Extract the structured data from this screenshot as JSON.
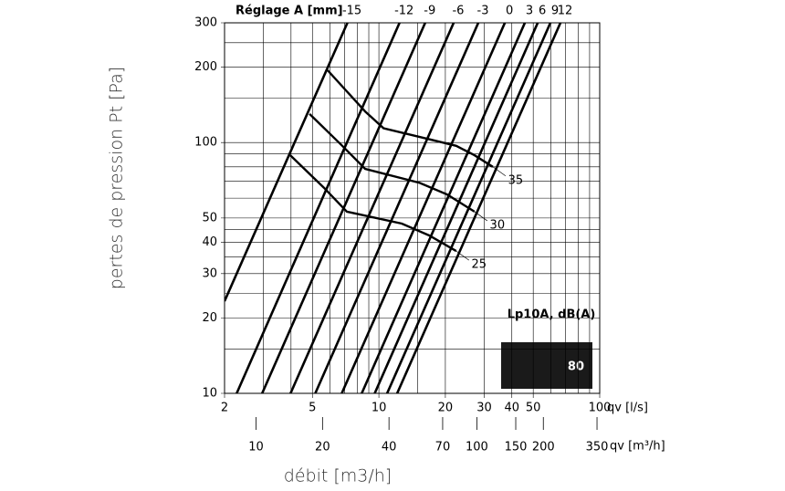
{
  "chart_data": {
    "type": "line",
    "xlog": true,
    "ylog": true,
    "series_title": "Réglage A [mm]",
    "xlabel": "qv [l/s]",
    "x2label": "qv [m³/h]",
    "ylabel": "pertes de pression  Pt [Pa]",
    "xtitle": "débit [m3/h]",
    "xlim": [
      2,
      100
    ],
    "ylim": [
      10,
      300
    ],
    "xticks": [
      2,
      5,
      10,
      20,
      30,
      40,
      50,
      100
    ],
    "yticks": [
      10,
      20,
      30,
      40,
      50,
      100,
      200,
      300
    ],
    "x2lim": [
      7.2,
      360
    ],
    "x2ticks": [
      10,
      20,
      40,
      70,
      100,
      150,
      200,
      350
    ],
    "xgrid": [
      3,
      4,
      6,
      7,
      8,
      9,
      15,
      60,
      70,
      80,
      90
    ],
    "ygrid": [
      15,
      25,
      35,
      45,
      60,
      70,
      80,
      90,
      150,
      250
    ],
    "grid": true,
    "series": [
      {
        "name": "-15",
        "color": "#000000",
        "x": [
          2,
          7.2
        ],
        "values": [
          23.3,
          300
        ]
      },
      {
        "name": "-12",
        "color": "#000000",
        "x": [
          2.27,
          12.4
        ],
        "values": [
          10,
          300
        ]
      },
      {
        "name": "-9",
        "color": "#000000",
        "x": [
          2.96,
          16.2
        ],
        "values": [
          10,
          300
        ]
      },
      {
        "name": "-6",
        "color": "#000000",
        "x": [
          3.98,
          21.8
        ],
        "values": [
          10,
          300
        ]
      },
      {
        "name": "-3",
        "color": "#000000",
        "x": [
          5.15,
          28.2
        ],
        "values": [
          10,
          300
        ]
      },
      {
        "name": "0",
        "color": "#000000",
        "x": [
          6.79,
          37.2
        ],
        "values": [
          10,
          300
        ]
      },
      {
        "name": "3",
        "color": "#000000",
        "x": [
          8.36,
          45.8
        ],
        "values": [
          10,
          300
        ]
      },
      {
        "name": "6",
        "color": "#000000",
        "x": [
          9.57,
          52.4
        ],
        "values": [
          10,
          300
        ]
      },
      {
        "name": "9",
        "color": "#000000",
        "x": [
          10.9,
          59.8
        ],
        "values": [
          10,
          300
        ]
      },
      {
        "name": "12",
        "color": "#000000",
        "x": [
          12.1,
          66.4
        ],
        "values": [
          10,
          300
        ]
      }
    ],
    "noise_curves": [
      {
        "name": "35",
        "x": [
          5.86,
          8.66,
          10.5,
          16.9,
          22.4,
          27.1,
          32.8
        ],
        "values": [
          194,
          133,
          114,
          103,
          97,
          89,
          80
        ]
      },
      {
        "name": "30",
        "x": [
          4.85,
          6.83,
          8.66,
          15.3,
          20.4,
          27.1
        ],
        "values": [
          130,
          97,
          78.5,
          69,
          62,
          53
        ]
      },
      {
        "name": "25",
        "x": [
          3.97,
          5.64,
          7.16,
          12.7,
          16.9,
          22.4
        ],
        "values": [
          89,
          66,
          53,
          47.5,
          42.6,
          36.9
        ]
      }
    ],
    "badge": {
      "title": "Lp10A, dB(A)",
      "value": 80
    }
  }
}
